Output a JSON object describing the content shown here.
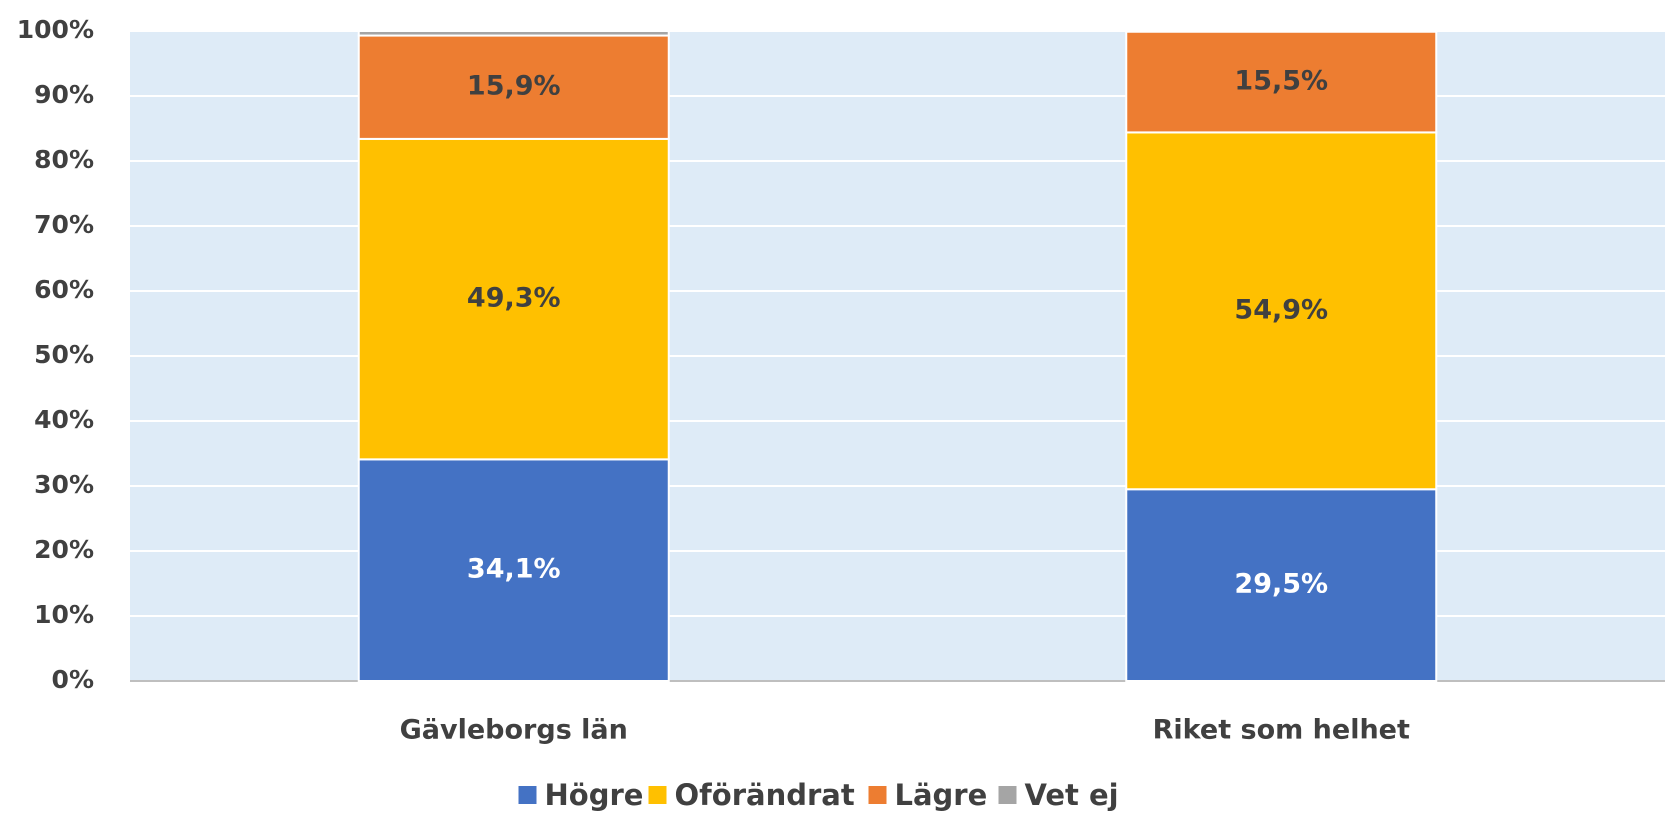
{
  "chart_data": {
    "type": "stacked-bar",
    "categories": [
      "Gävleborgs län",
      "Riket som helhet"
    ],
    "series": [
      {
        "name": "Högre",
        "color": "#4472c4",
        "values": [
          34.1,
          29.5
        ],
        "value_labels": [
          "34,1%",
          "29,5%"
        ]
      },
      {
        "name": "Oförändrat",
        "color": "#ffc000",
        "values": [
          49.3,
          54.9
        ],
        "value_labels": [
          "49,3%",
          "54,9%"
        ]
      },
      {
        "name": "Lägre",
        "color": "#ed7d31",
        "values": [
          15.9,
          15.5
        ],
        "value_labels": [
          "15,9%",
          "15,5%"
        ]
      },
      {
        "name": "Vet ej",
        "color": "#a5a5a5",
        "values": [
          0.7,
          0.1
        ]
      }
    ],
    "ylim": [
      0,
      100
    ],
    "yticks": [
      {
        "value": 0,
        "label": "0%"
      },
      {
        "value": 10,
        "label": "10%"
      },
      {
        "value": 20,
        "label": "20%"
      },
      {
        "value": 30,
        "label": "30%"
      },
      {
        "value": 40,
        "label": "40%"
      },
      {
        "value": 50,
        "label": "50%"
      },
      {
        "value": 60,
        "label": "60%"
      },
      {
        "value": 70,
        "label": "70%"
      },
      {
        "value": 80,
        "label": "80%"
      },
      {
        "value": 90,
        "label": "90%"
      },
      {
        "value": 100,
        "label": "100%"
      }
    ],
    "grid": true,
    "legend": "bottom"
  }
}
